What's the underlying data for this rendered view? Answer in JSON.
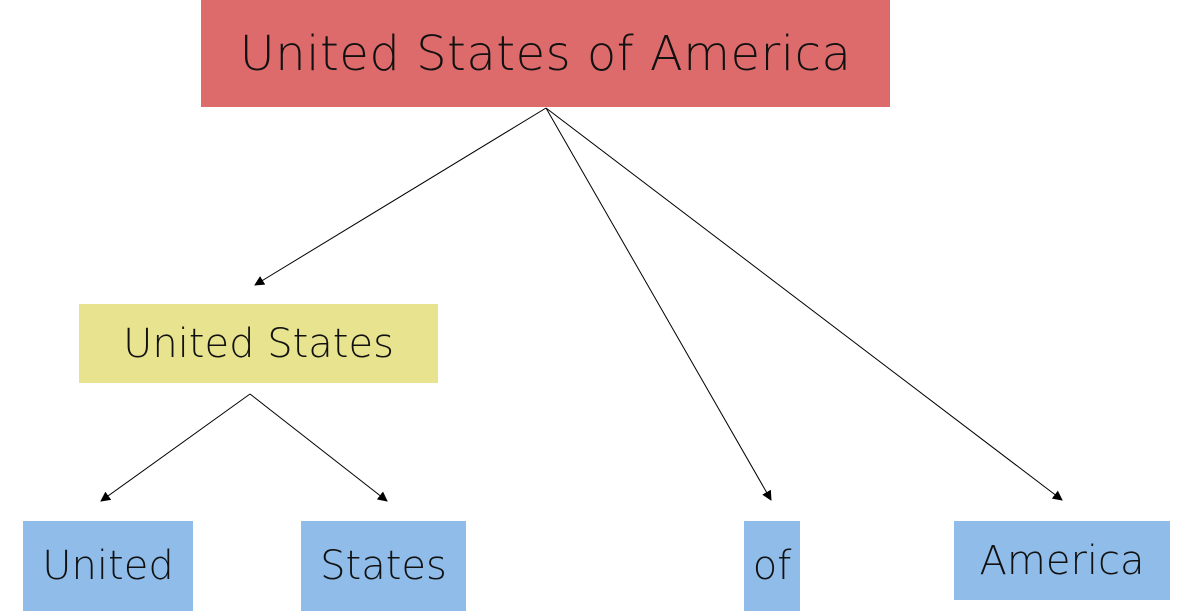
{
  "colors": {
    "root_fill": "#de6b6b",
    "intermediate_fill": "#e8e38f",
    "leaf_fill": "#8fbce8",
    "edge": "#000000"
  },
  "nodes": {
    "root": {
      "label": "United States of America"
    },
    "united_states": {
      "label": "United States"
    },
    "united": {
      "label": "United"
    },
    "states": {
      "label": "States"
    },
    "of": {
      "label": "of"
    },
    "america": {
      "label": "America"
    }
  }
}
